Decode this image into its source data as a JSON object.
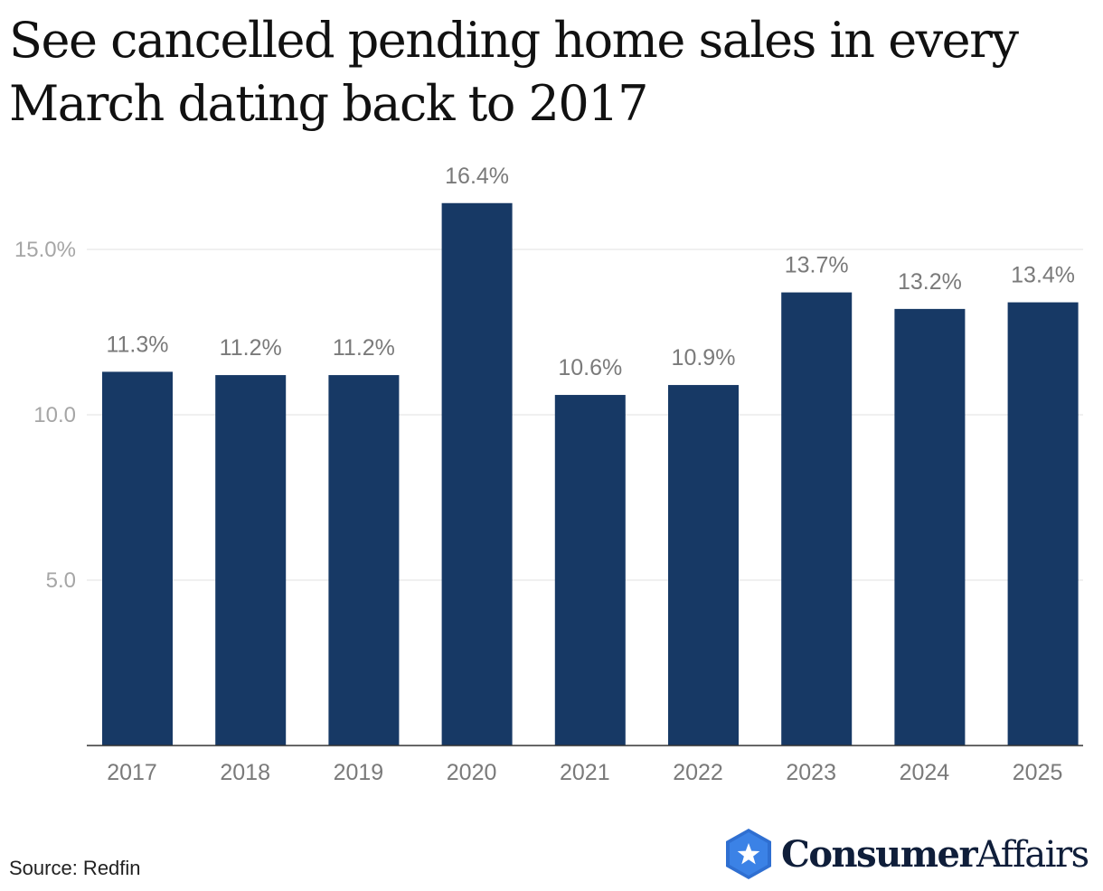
{
  "title": "See cancelled pending home sales in every March dating back to 2017",
  "source": "Source: Redfin",
  "brand": {
    "name_strong": "Consumer",
    "name_light": "Affairs",
    "logo_icon": "star-hexagon-icon"
  },
  "colors": {
    "bar": "#173965",
    "axis_text": "#a6a6a6",
    "label_text": "#7a7a7a",
    "grid": "#e6e6e6",
    "brand_accent": "#2f6fd1"
  },
  "chart_data": {
    "type": "bar",
    "title": "See cancelled pending home sales in every March dating back to 2017",
    "categories": [
      "2017",
      "2018",
      "2019",
      "2020",
      "2021",
      "2022",
      "2023",
      "2024",
      "2025"
    ],
    "values": [
      11.3,
      11.2,
      11.2,
      16.4,
      10.6,
      10.9,
      13.7,
      13.2,
      13.4
    ],
    "data_labels": [
      "11.3%",
      "11.2%",
      "11.2%",
      "16.4%",
      "10.6%",
      "10.9%",
      "13.7%",
      "13.2%",
      "13.4%"
    ],
    "yticks": [
      5.0,
      10.0,
      15.0
    ],
    "ytick_labels": [
      "5.0",
      "10.0",
      "15.0%"
    ],
    "ylim": [
      0,
      17.5
    ],
    "xlabel": "",
    "ylabel": "",
    "grid": true,
    "legend": "none"
  }
}
